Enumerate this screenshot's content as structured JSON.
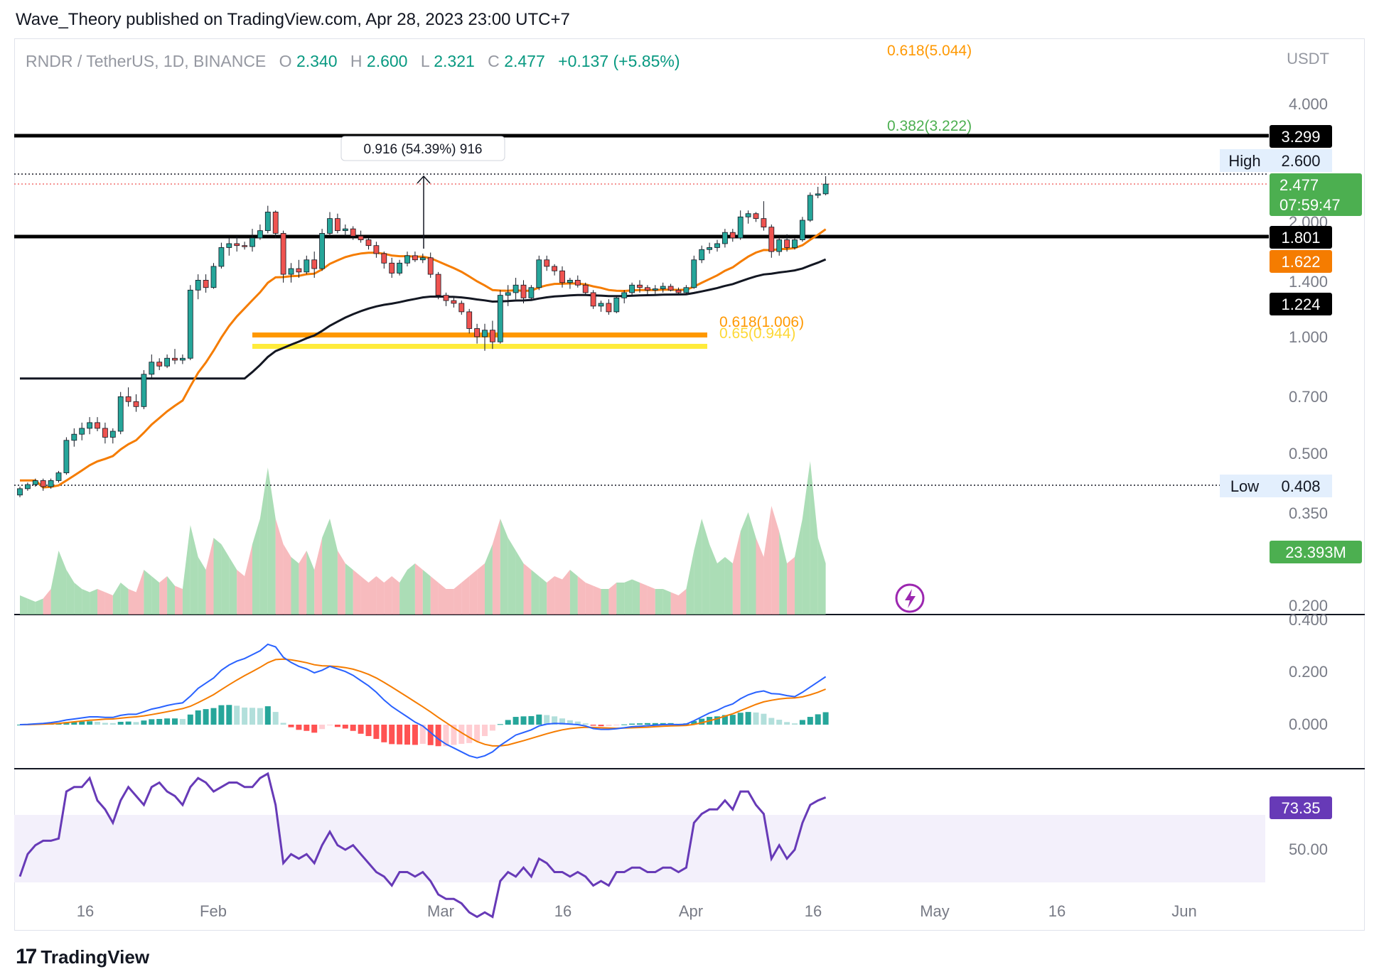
{
  "header": {
    "publisher": "Wave_Theory published on TradingView.com, Apr 28, 2023 23:00 UTC+7"
  },
  "legend": {
    "symbol": "RNDR / TetherUS, 1D, BINANCE",
    "o_label": "O",
    "o_value": "2.340",
    "h_label": "H",
    "h_value": "2.600",
    "l_label": "L",
    "l_value": "2.321",
    "c_label": "C",
    "c_value": "2.477",
    "change": "+0.137 (+5.85%)"
  },
  "currency": "USDT",
  "footer": {
    "brand": "TradingView"
  },
  "colors": {
    "up": "#26a69a",
    "down": "#ef5350",
    "up_fill": "#8fd19e",
    "down_fill": "#f4a4a8",
    "ema50": "#f57c00",
    "ema200": "#131722",
    "macd": "#2962ff",
    "signal": "#f57c00",
    "rsi": "#673ab7",
    "fib_orange": "#ff9800",
    "fib_yellow": "#ffeb3b",
    "fib_green": "#4caf50"
  },
  "chart_data": {
    "type": "candlestick",
    "scale": "log",
    "price_ticks": [
      "4.000",
      "2.000",
      "1.400",
      "1.000",
      "0.700",
      "0.500",
      "0.350",
      "0.200"
    ],
    "time_ticks": [
      "16",
      "Feb",
      "Mar",
      "16",
      "Apr",
      "16",
      "May",
      "16",
      "Jun"
    ],
    "badges": [
      {
        "label": "3.299",
        "kind": "black"
      },
      {
        "label": "High",
        "value": "2.600",
        "kind": "light"
      },
      {
        "label": "2.477",
        "sub": "07:59:47",
        "kind": "green"
      },
      {
        "label": "1.801",
        "kind": "black"
      },
      {
        "label": "1.622",
        "kind": "orange"
      },
      {
        "label": "1.224",
        "kind": "black"
      },
      {
        "label": "Low",
        "value": "0.408",
        "kind": "light"
      }
    ],
    "horizontal_lines": [
      3.299,
      1.801
    ],
    "fib_levels": [
      {
        "label": "0.618(5.044)",
        "color": "#ff9800"
      },
      {
        "label": "0.382(3.222)",
        "color": "#4caf50"
      },
      {
        "label": "0.618(1.006)",
        "color": "#ff9800"
      },
      {
        "label": "0.65(0.944)",
        "color": "#ffeb3b"
      }
    ],
    "measure_label": "0.916 (54.39%) 916",
    "volume_badge": "23.393M",
    "macd_ticks": [
      "0.400",
      "0.200",
      "0.000"
    ],
    "rsi_badge": "73.35",
    "rsi_ticks": [
      "50.00"
    ],
    "candles": [
      [
        0.39,
        0.41,
        0.385,
        0.405
      ],
      [
        0.405,
        0.42,
        0.4,
        0.415
      ],
      [
        0.415,
        0.43,
        0.41,
        0.425
      ],
      [
        0.425,
        0.43,
        0.4,
        0.41
      ],
      [
        0.41,
        0.43,
        0.405,
        0.425
      ],
      [
        0.425,
        0.45,
        0.42,
        0.445
      ],
      [
        0.445,
        0.55,
        0.44,
        0.54
      ],
      [
        0.54,
        0.58,
        0.52,
        0.56
      ],
      [
        0.56,
        0.6,
        0.54,
        0.58
      ],
      [
        0.58,
        0.62,
        0.56,
        0.6
      ],
      [
        0.6,
        0.62,
        0.57,
        0.58
      ],
      [
        0.58,
        0.6,
        0.53,
        0.55
      ],
      [
        0.55,
        0.58,
        0.53,
        0.57
      ],
      [
        0.57,
        0.72,
        0.56,
        0.7
      ],
      [
        0.7,
        0.74,
        0.66,
        0.68
      ],
      [
        0.68,
        0.71,
        0.64,
        0.66
      ],
      [
        0.66,
        0.82,
        0.65,
        0.8
      ],
      [
        0.8,
        0.9,
        0.78,
        0.86
      ],
      [
        0.86,
        0.88,
        0.82,
        0.84
      ],
      [
        0.84,
        0.9,
        0.83,
        0.88
      ],
      [
        0.88,
        0.93,
        0.85,
        0.87
      ],
      [
        0.87,
        0.9,
        0.85,
        0.88
      ],
      [
        0.88,
        1.36,
        0.87,
        1.32
      ],
      [
        1.32,
        1.45,
        1.25,
        1.4
      ],
      [
        1.4,
        1.45,
        1.3,
        1.34
      ],
      [
        1.34,
        1.55,
        1.33,
        1.52
      ],
      [
        1.52,
        1.75,
        1.5,
        1.7
      ],
      [
        1.7,
        1.8,
        1.62,
        1.74
      ],
      [
        1.74,
        1.82,
        1.66,
        1.72
      ],
      [
        1.72,
        1.76,
        1.68,
        1.71
      ],
      [
        1.71,
        1.9,
        1.66,
        1.8
      ],
      [
        1.8,
        1.95,
        1.78,
        1.88
      ],
      [
        1.88,
        2.18,
        1.85,
        2.1
      ],
      [
        2.1,
        2.12,
        1.8,
        1.85
      ],
      [
        1.85,
        1.88,
        1.38,
        1.45
      ],
      [
        1.45,
        1.55,
        1.38,
        1.5
      ],
      [
        1.5,
        1.58,
        1.42,
        1.47
      ],
      [
        1.47,
        1.62,
        1.45,
        1.58
      ],
      [
        1.58,
        1.66,
        1.42,
        1.5
      ],
      [
        1.5,
        1.9,
        1.48,
        1.85
      ],
      [
        1.85,
        2.1,
        1.82,
        2.02
      ],
      [
        2.02,
        2.08,
        1.85,
        1.88
      ],
      [
        1.88,
        1.95,
        1.82,
        1.9
      ],
      [
        1.9,
        1.93,
        1.78,
        1.82
      ],
      [
        1.82,
        1.88,
        1.75,
        1.78
      ],
      [
        1.78,
        1.8,
        1.68,
        1.72
      ],
      [
        1.72,
        1.76,
        1.6,
        1.64
      ],
      [
        1.64,
        1.66,
        1.5,
        1.55
      ],
      [
        1.55,
        1.6,
        1.42,
        1.46
      ],
      [
        1.46,
        1.58,
        1.44,
        1.55
      ],
      [
        1.55,
        1.66,
        1.52,
        1.62
      ],
      [
        1.62,
        1.66,
        1.56,
        1.58
      ],
      [
        1.58,
        1.64,
        1.55,
        1.6
      ],
      [
        1.6,
        1.65,
        1.42,
        1.45
      ],
      [
        1.45,
        1.47,
        1.25,
        1.28
      ],
      [
        1.28,
        1.3,
        1.2,
        1.24
      ],
      [
        1.24,
        1.27,
        1.19,
        1.22
      ],
      [
        1.22,
        1.24,
        1.14,
        1.16
      ],
      [
        1.16,
        1.18,
        1.02,
        1.05
      ],
      [
        1.05,
        1.08,
        0.96,
        1.0
      ],
      [
        1.0,
        1.08,
        0.92,
        1.04
      ],
      [
        1.04,
        1.1,
        0.93,
        0.97
      ],
      [
        0.97,
        1.32,
        0.96,
        1.28
      ],
      [
        1.28,
        1.36,
        1.2,
        1.3
      ],
      [
        1.3,
        1.42,
        1.25,
        1.36
      ],
      [
        1.36,
        1.4,
        1.22,
        1.26
      ],
      [
        1.26,
        1.36,
        1.24,
        1.34
      ],
      [
        1.34,
        1.62,
        1.32,
        1.58
      ],
      [
        1.58,
        1.62,
        1.48,
        1.52
      ],
      [
        1.52,
        1.54,
        1.44,
        1.48
      ],
      [
        1.48,
        1.52,
        1.34,
        1.38
      ],
      [
        1.38,
        1.42,
        1.33,
        1.4
      ],
      [
        1.4,
        1.44,
        1.34,
        1.36
      ],
      [
        1.36,
        1.38,
        1.28,
        1.3
      ],
      [
        1.3,
        1.32,
        1.18,
        1.2
      ],
      [
        1.2,
        1.24,
        1.16,
        1.22
      ],
      [
        1.22,
        1.25,
        1.14,
        1.16
      ],
      [
        1.16,
        1.28,
        1.15,
        1.26
      ],
      [
        1.26,
        1.32,
        1.22,
        1.3
      ],
      [
        1.3,
        1.38,
        1.28,
        1.36
      ],
      [
        1.36,
        1.4,
        1.3,
        1.34
      ],
      [
        1.34,
        1.36,
        1.28,
        1.32
      ],
      [
        1.32,
        1.36,
        1.29,
        1.33
      ],
      [
        1.33,
        1.38,
        1.3,
        1.35
      ],
      [
        1.35,
        1.37,
        1.31,
        1.32
      ],
      [
        1.32,
        1.34,
        1.28,
        1.3
      ],
      [
        1.3,
        1.36,
        1.29,
        1.34
      ],
      [
        1.34,
        1.62,
        1.33,
        1.58
      ],
      [
        1.58,
        1.72,
        1.55,
        1.68
      ],
      [
        1.68,
        1.75,
        1.64,
        1.7
      ],
      [
        1.7,
        1.78,
        1.66,
        1.74
      ],
      [
        1.74,
        1.9,
        1.7,
        1.86
      ],
      [
        1.86,
        1.9,
        1.76,
        1.8
      ],
      [
        1.8,
        2.12,
        1.78,
        2.04
      ],
      [
        2.04,
        2.12,
        1.96,
        2.08
      ],
      [
        2.08,
        2.1,
        1.98,
        2.02
      ],
      [
        2.02,
        2.24,
        1.88,
        1.92
      ],
      [
        1.92,
        1.95,
        1.6,
        1.66
      ],
      [
        1.66,
        1.82,
        1.62,
        1.78
      ],
      [
        1.78,
        1.84,
        1.66,
        1.7
      ],
      [
        1.7,
        1.8,
        1.68,
        1.78
      ],
      [
        1.78,
        2.04,
        1.76,
        2.0
      ],
      [
        2.0,
        2.36,
        1.98,
        2.32
      ],
      [
        2.32,
        2.44,
        2.28,
        2.34
      ],
      [
        2.34,
        2.6,
        2.32,
        2.48
      ]
    ],
    "volume": [
      6,
      5,
      4,
      5,
      8,
      20,
      14,
      10,
      8,
      7,
      8,
      7,
      6,
      10,
      8,
      7,
      14,
      12,
      10,
      12,
      9,
      8,
      28,
      18,
      14,
      24,
      22,
      18,
      14,
      12,
      22,
      30,
      46,
      30,
      22,
      18,
      16,
      20,
      14,
      24,
      30,
      20,
      16,
      14,
      12,
      10,
      12,
      10,
      12,
      10,
      14,
      16,
      14,
      12,
      10,
      8,
      8,
      10,
      12,
      14,
      16,
      22,
      30,
      24,
      20,
      16,
      14,
      12,
      10,
      12,
      11,
      14,
      12,
      10,
      9,
      8,
      8,
      10,
      10,
      11,
      10,
      9,
      8,
      8,
      7,
      6,
      8,
      20,
      30,
      22,
      16,
      18,
      16,
      26,
      32,
      24,
      18,
      34,
      26,
      16,
      18,
      30,
      48,
      24,
      16
    ],
    "macd": [
      0.0,
      0.001,
      0.003,
      0.005,
      0.008,
      0.012,
      0.018,
      0.022,
      0.026,
      0.03,
      0.03,
      0.028,
      0.028,
      0.036,
      0.04,
      0.04,
      0.05,
      0.06,
      0.066,
      0.074,
      0.08,
      0.084,
      0.11,
      0.14,
      0.16,
      0.18,
      0.21,
      0.23,
      0.245,
      0.255,
      0.27,
      0.285,
      0.31,
      0.3,
      0.26,
      0.24,
      0.225,
      0.215,
      0.2,
      0.21,
      0.225,
      0.215,
      0.205,
      0.19,
      0.17,
      0.15,
      0.125,
      0.095,
      0.07,
      0.05,
      0.03,
      0.01,
      -0.005,
      -0.03,
      -0.055,
      -0.075,
      -0.09,
      -0.105,
      -0.12,
      -0.128,
      -0.12,
      -0.105,
      -0.08,
      -0.06,
      -0.04,
      -0.03,
      -0.02,
      -0.005,
      0.002,
      0.005,
      0.004,
      0.002,
      0.0,
      -0.005,
      -0.015,
      -0.018,
      -0.018,
      -0.016,
      -0.012,
      -0.008,
      -0.006,
      -0.004,
      -0.002,
      0.0,
      0.001,
      0.0,
      0.002,
      0.015,
      0.03,
      0.045,
      0.055,
      0.07,
      0.08,
      0.1,
      0.115,
      0.125,
      0.13,
      0.12,
      0.118,
      0.112,
      0.108,
      0.125,
      0.145,
      0.165,
      0.185
    ],
    "signal": [
      0.0,
      0.0,
      0.001,
      0.002,
      0.003,
      0.005,
      0.008,
      0.011,
      0.014,
      0.017,
      0.019,
      0.021,
      0.022,
      0.025,
      0.028,
      0.03,
      0.034,
      0.039,
      0.044,
      0.05,
      0.056,
      0.062,
      0.071,
      0.085,
      0.1,
      0.116,
      0.135,
      0.154,
      0.172,
      0.189,
      0.205,
      0.221,
      0.239,
      0.251,
      0.253,
      0.25,
      0.245,
      0.239,
      0.231,
      0.227,
      0.226,
      0.224,
      0.22,
      0.214,
      0.205,
      0.194,
      0.18,
      0.163,
      0.145,
      0.126,
      0.107,
      0.088,
      0.069,
      0.049,
      0.028,
      0.008,
      -0.012,
      -0.031,
      -0.049,
      -0.065,
      -0.076,
      -0.082,
      -0.082,
      -0.078,
      -0.07,
      -0.062,
      -0.053,
      -0.044,
      -0.035,
      -0.027,
      -0.02,
      -0.015,
      -0.012,
      -0.01,
      -0.011,
      -0.012,
      -0.013,
      -0.014,
      -0.013,
      -0.012,
      -0.011,
      -0.01,
      -0.008,
      -0.006,
      -0.005,
      -0.004,
      -0.003,
      0.001,
      0.007,
      0.015,
      0.023,
      0.033,
      0.042,
      0.054,
      0.066,
      0.078,
      0.088,
      0.094,
      0.099,
      0.102,
      0.103,
      0.107,
      0.115,
      0.125,
      0.137
    ],
    "rsi": [
      38,
      48,
      52,
      54,
      54,
      55,
      76,
      78,
      78,
      82,
      72,
      68,
      62,
      72,
      78,
      74,
      70,
      78,
      80,
      76,
      74,
      70,
      78,
      82,
      80,
      76,
      78,
      80,
      80,
      78,
      78,
      82,
      84,
      70,
      44,
      48,
      46,
      48,
      44,
      52,
      58,
      52,
      50,
      52,
      48,
      44,
      40,
      38,
      34,
      40,
      40,
      38,
      40,
      36,
      30,
      28,
      28,
      26,
      22,
      20,
      22,
      20,
      36,
      40,
      38,
      42,
      38,
      46,
      44,
      40,
      40,
      38,
      40,
      38,
      34,
      36,
      34,
      40,
      40,
      42,
      42,
      40,
      40,
      42,
      42,
      40,
      42,
      62,
      66,
      68,
      68,
      72,
      68,
      76,
      76,
      70,
      66,
      46,
      52,
      46,
      50,
      62,
      70,
      72,
      73.35
    ]
  }
}
